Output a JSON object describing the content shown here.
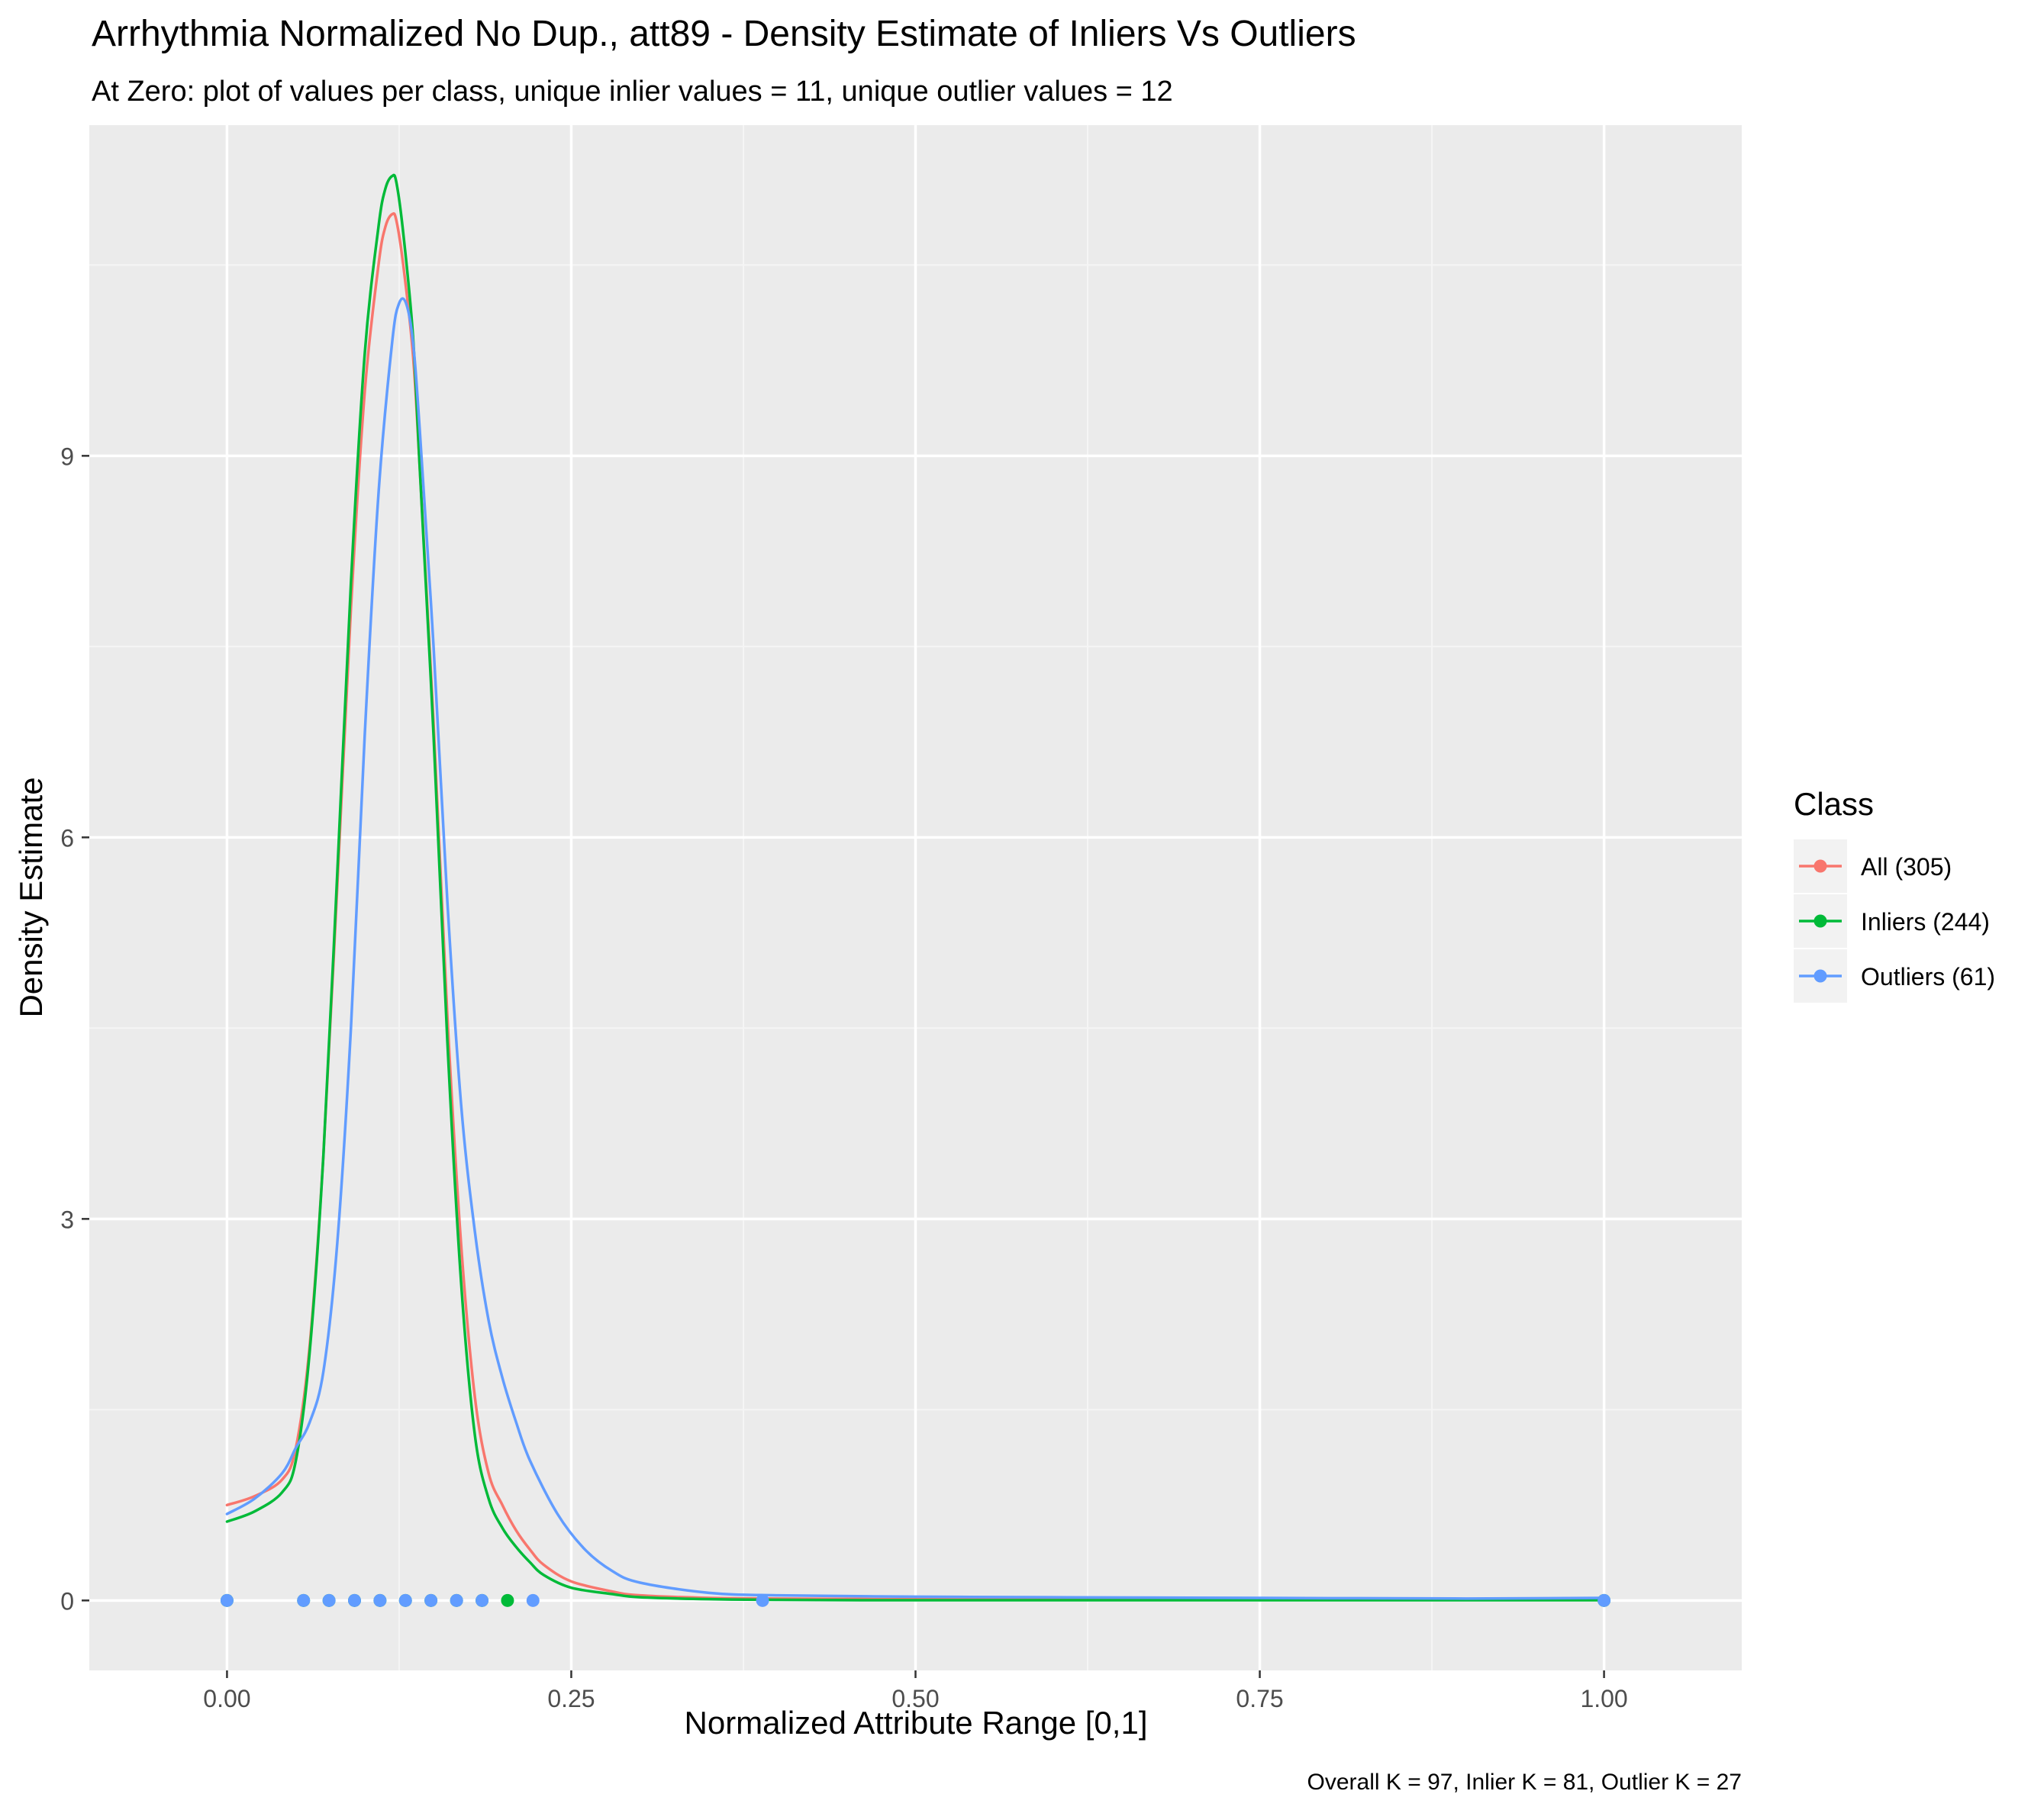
{
  "chart_data": {
    "type": "line",
    "title": "Arrhythmia Normalized No Dup., att89 - Density Estimate of Inliers Vs Outliers",
    "subtitle": "At Zero: plot of values per class, unique inlier values = 11, unique outlier values = 12",
    "xlabel": "Normalized Attribute Range [0,1]",
    "ylabel": "Density Estimate",
    "caption": "Overall K = 97, Inlier K = 81, Outlier K = 27",
    "xlim": [
      -0.1,
      1.1
    ],
    "ylim": [
      -0.55,
      11.6
    ],
    "x_ticks": [
      0,
      0.25,
      0.5,
      0.75,
      1
    ],
    "x_tick_labels": [
      "0.00",
      "0.25",
      "0.50",
      "0.75",
      "1.00"
    ],
    "y_ticks": [
      0,
      3,
      6,
      9
    ],
    "y_tick_labels": [
      "0",
      "3",
      "6",
      "9"
    ],
    "grid": true,
    "legend": {
      "title": "Class",
      "position": "right",
      "entries": [
        {
          "label": "All (305)",
          "color": "#F8766D"
        },
        {
          "label": "Inliers (244)",
          "color": "#00BA38"
        },
        {
          "label": "Outliers (61)",
          "color": "#619CFF"
        }
      ]
    },
    "colors": {
      "panel_background": "#EBEBEB",
      "grid_major": "#FFFFFF",
      "grid_minor": "#F5F5F5",
      "all": "#F8766D",
      "inliers": "#00BA38",
      "outliers": "#619CFF"
    },
    "series": [
      {
        "name": "All (305)",
        "color": "#F8766D",
        "x": [
          0,
          0.02,
          0.04,
          0.05,
          0.06,
          0.07,
          0.08,
          0.09,
          0.1,
          0.11,
          0.115,
          0.12,
          0.123,
          0.128,
          0.135,
          0.14,
          0.15,
          0.16,
          0.17,
          0.18,
          0.19,
          0.2,
          0.21,
          0.22,
          0.23,
          0.25,
          0.28,
          0.3,
          0.35,
          0.4,
          0.5,
          0.6,
          0.75,
          1.0
        ],
        "y": [
          0.75,
          0.82,
          0.95,
          1.2,
          2.0,
          3.5,
          5.6,
          7.8,
          9.5,
          10.5,
          10.8,
          10.9,
          10.85,
          10.5,
          9.8,
          8.9,
          6.9,
          4.6,
          2.8,
          1.6,
          1.0,
          0.75,
          0.55,
          0.4,
          0.28,
          0.15,
          0.07,
          0.04,
          0.02,
          0.015,
          0.01,
          0.008,
          0.007,
          0.01
        ]
      },
      {
        "name": "Inliers (244)",
        "color": "#00BA38",
        "x": [
          0,
          0.02,
          0.04,
          0.05,
          0.06,
          0.07,
          0.08,
          0.09,
          0.1,
          0.11,
          0.115,
          0.12,
          0.123,
          0.128,
          0.135,
          0.14,
          0.15,
          0.16,
          0.17,
          0.18,
          0.19,
          0.2,
          0.21,
          0.22,
          0.23,
          0.25,
          0.28,
          0.3,
          0.35,
          0.4,
          0.46,
          0.6,
          0.75,
          1.0
        ],
        "y": [
          0.62,
          0.7,
          0.85,
          1.1,
          1.95,
          3.5,
          5.7,
          8.0,
          9.8,
          10.8,
          11.1,
          11.2,
          11.15,
          10.75,
          9.95,
          8.9,
          6.8,
          4.4,
          2.5,
          1.3,
          0.8,
          0.57,
          0.42,
          0.3,
          0.2,
          0.1,
          0.05,
          0.025,
          0.01,
          0.005,
          0.002,
          0.002,
          0.002,
          0.002
        ]
      },
      {
        "name": "Outliers (61)",
        "color": "#619CFF",
        "x": [
          0,
          0.02,
          0.04,
          0.05,
          0.06,
          0.07,
          0.08,
          0.09,
          0.1,
          0.11,
          0.12,
          0.125,
          0.13,
          0.135,
          0.14,
          0.15,
          0.16,
          0.17,
          0.18,
          0.19,
          0.2,
          0.21,
          0.22,
          0.24,
          0.26,
          0.28,
          0.3,
          0.35,
          0.4,
          0.5,
          0.6,
          0.75,
          0.9,
          1.0
        ],
        "y": [
          0.68,
          0.8,
          1.0,
          1.2,
          1.4,
          1.8,
          2.8,
          4.5,
          6.8,
          8.7,
          9.9,
          10.2,
          10.2,
          9.9,
          9.2,
          7.5,
          5.5,
          3.9,
          2.9,
          2.2,
          1.75,
          1.4,
          1.1,
          0.68,
          0.4,
          0.23,
          0.14,
          0.06,
          0.04,
          0.03,
          0.025,
          0.02,
          0.015,
          0.02
        ]
      }
    ],
    "rug": [
      {
        "name": "Inliers (244)",
        "color": "#00BA38",
        "y": 0,
        "x": [
          0,
          0.0556,
          0.0741,
          0.0926,
          0.1111,
          0.1296,
          0.1481,
          0.1667,
          0.1852,
          0.2037,
          1.0
        ]
      },
      {
        "name": "Outliers (61)",
        "color": "#619CFF",
        "y": 0,
        "x": [
          0,
          0.0556,
          0.0741,
          0.0926,
          0.1111,
          0.1296,
          0.1481,
          0.1667,
          0.1852,
          0.2222,
          0.3889,
          1.0
        ]
      }
    ]
  }
}
